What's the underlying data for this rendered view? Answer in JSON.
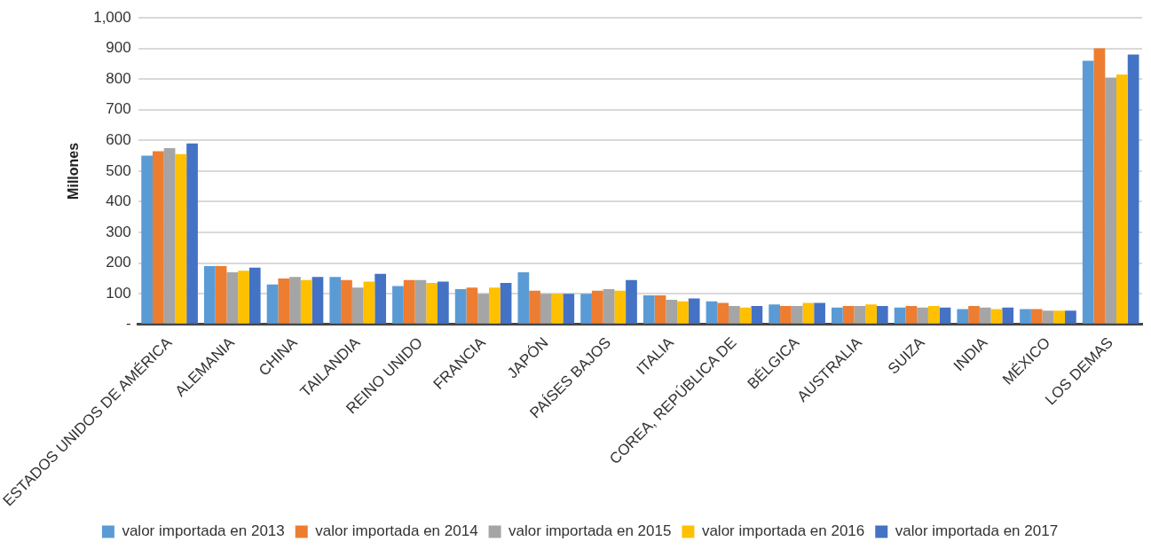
{
  "chart_data": {
    "type": "bar",
    "ylabel": "Millones",
    "categories": [
      "ESTADOS UNIDOS DE AMÉRICA",
      "ALEMANIA",
      "CHINA",
      "TAILANDIA",
      "REINO UNIDO",
      "FRANCIA",
      "JAPÓN",
      "PAÍSES BAJOS",
      "ITALIA",
      "COREA, REPÚBLICA DE",
      "BÉLGICA",
      "AUSTRALIA",
      "SUIZA",
      "INDIA",
      "MÉXICO",
      "LOS DEMAS"
    ],
    "series": [
      {
        "name": "valor importada en 2013",
        "color": "#5b9bd5",
        "values": [
          550,
          190,
          130,
          155,
          125,
          115,
          170,
          100,
          95,
          75,
          65,
          55,
          55,
          50,
          50,
          860
        ]
      },
      {
        "name": "valor importada en 2014",
        "color": "#ed7d31",
        "values": [
          565,
          190,
          150,
          145,
          145,
          120,
          110,
          110,
          95,
          70,
          60,
          60,
          60,
          60,
          50,
          900
        ]
      },
      {
        "name": "valor importada en 2015",
        "color": "#a5a5a5",
        "values": [
          575,
          170,
          155,
          120,
          145,
          100,
          100,
          115,
          80,
          60,
          60,
          60,
          55,
          55,
          45,
          805
        ]
      },
      {
        "name": "valor importada en 2016",
        "color": "#ffc000",
        "values": [
          555,
          175,
          145,
          140,
          135,
          120,
          100,
          110,
          75,
          55,
          70,
          65,
          60,
          50,
          45,
          815
        ]
      },
      {
        "name": "valor importada en 2017",
        "color": "#4472c4",
        "values": [
          590,
          185,
          155,
          165,
          140,
          135,
          100,
          145,
          85,
          60,
          70,
          60,
          55,
          55,
          45,
          880
        ]
      }
    ],
    "ylim": [
      0,
      1000
    ],
    "yticks": [
      {
        "value": 0,
        "label": "-"
      },
      {
        "value": 100,
        "label": "100"
      },
      {
        "value": 200,
        "label": "200"
      },
      {
        "value": 300,
        "label": "300"
      },
      {
        "value": 400,
        "label": "400"
      },
      {
        "value": 500,
        "label": "500"
      },
      {
        "value": 600,
        "label": "600"
      },
      {
        "value": 700,
        "label": "700"
      },
      {
        "value": 800,
        "label": "800"
      },
      {
        "value": 900,
        "label": "900"
      },
      {
        "value": 1000,
        "label": "1,000"
      }
    ],
    "grid": "y",
    "legend": "bottom"
  }
}
